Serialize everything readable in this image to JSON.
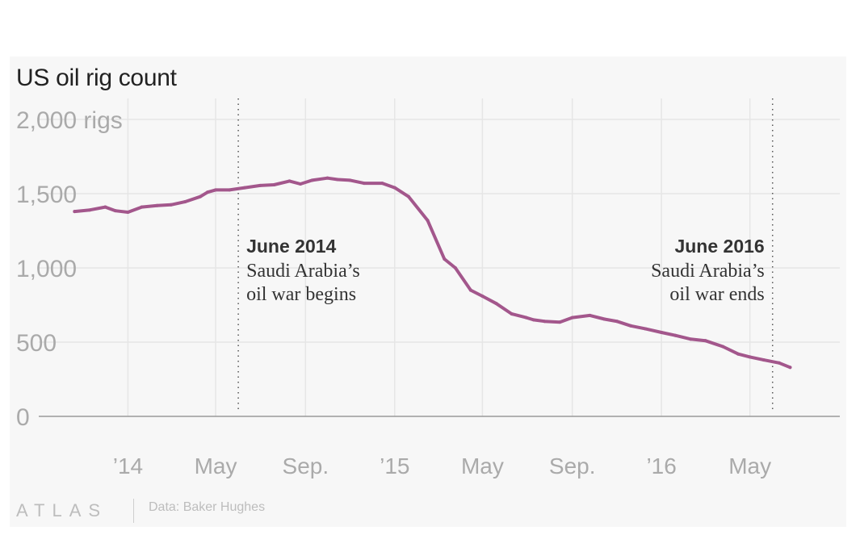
{
  "chart_data": {
    "type": "line",
    "title": "US oil rig count",
    "y_unit_label": "2,000 rigs",
    "y_tick_labels": [
      "2,000 rigs",
      "1,500",
      "1,000",
      "500",
      "0"
    ],
    "y_ticks": [
      2000,
      1500,
      1000,
      500,
      0
    ],
    "ylim": [
      0,
      2000
    ],
    "x_tick_labels": [
      "’14",
      "May",
      "Sep.",
      "’15",
      "May",
      "Sep.",
      "’16",
      "May"
    ],
    "x_ticks": [
      "2014-01",
      "2014-05",
      "2014-09",
      "2015-01",
      "2015-05",
      "2015-09",
      "2016-01",
      "2016-05"
    ],
    "xlim": [
      "2013-09",
      "2016-09"
    ],
    "grid": true,
    "line_color": "#a3578c",
    "series": [
      {
        "x": [
          "2013-10-20",
          "2013-11-10",
          "2013-12-01",
          "2013-12-15",
          "2014-01-01",
          "2014-01-20",
          "2014-02-10",
          "2014-03-01",
          "2014-03-20",
          "2014-04-10",
          "2014-04-20",
          "2014-05-01",
          "2014-05-20",
          "2014-06-10",
          "2014-07-01",
          "2014-07-20",
          "2014-08-10",
          "2014-08-25",
          "2014-09-10",
          "2014-10-01",
          "2014-10-15",
          "2014-11-01",
          "2014-11-20",
          "2014-12-15",
          "2015-01-01",
          "2015-01-20",
          "2015-02-15",
          "2015-03-10",
          "2015-03-25",
          "2015-04-15",
          "2015-05-01",
          "2015-05-20",
          "2015-06-10",
          "2015-06-30",
          "2015-07-10",
          "2015-07-25",
          "2015-08-15",
          "2015-09-01",
          "2015-09-25",
          "2015-10-15",
          "2015-11-01",
          "2015-11-20",
          "2015-12-10",
          "2016-01-01",
          "2016-01-20",
          "2016-02-10",
          "2016-03-01",
          "2016-03-25",
          "2016-04-15",
          "2016-05-01",
          "2016-05-20",
          "2016-06-10",
          "2016-06-25"
        ],
        "y": [
          1380,
          1390,
          1410,
          1385,
          1375,
          1410,
          1420,
          1425,
          1445,
          1480,
          1510,
          1525,
          1525,
          1540,
          1555,
          1560,
          1585,
          1565,
          1590,
          1605,
          1595,
          1590,
          1570,
          1570,
          1540,
          1480,
          1320,
          1060,
          1000,
          850,
          810,
          760,
          690,
          665,
          650,
          640,
          635,
          665,
          680,
          655,
          640,
          610,
          590,
          565,
          545,
          520,
          510,
          470,
          420,
          400,
          380,
          360,
          330
        ]
      }
    ],
    "annotations": [
      {
        "date": "2014-06",
        "title": "June 2014",
        "line1": "Saudi Arabia’s",
        "line2": "oil war begins",
        "align": "left"
      },
      {
        "date": "2016-06",
        "title": "June 2016",
        "line1": "Saudi Arabia’s",
        "line2": "oil war ends",
        "align": "right"
      }
    ]
  },
  "footer": {
    "logo": "ATLAS",
    "source": "Data: Baker Hughes"
  }
}
